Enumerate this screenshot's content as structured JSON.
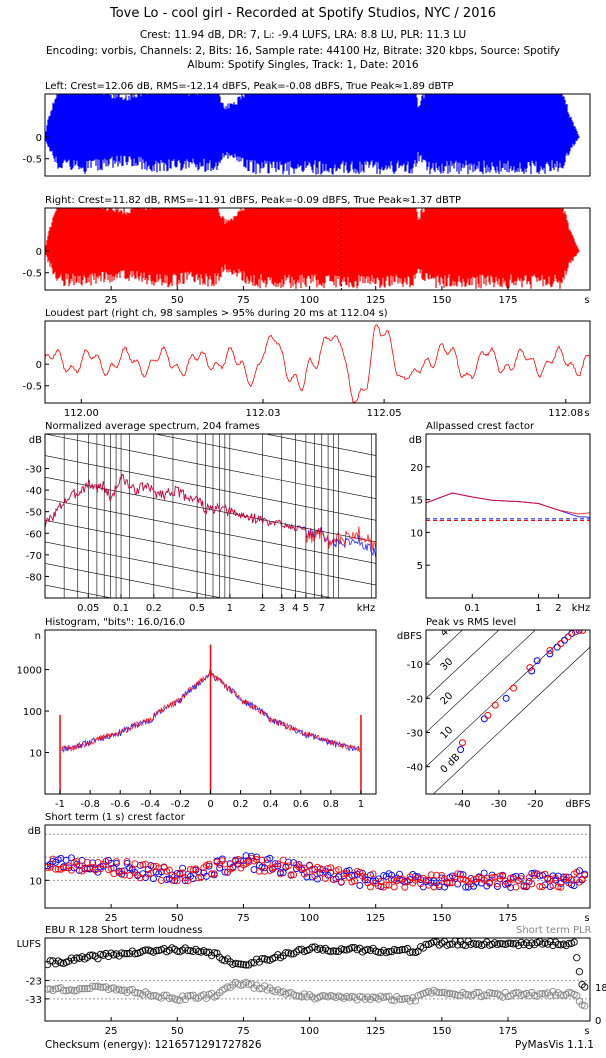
{
  "header": {
    "title": "Tove Lo - cool girl - Recorded at Spotify Studios, NYC / 2016",
    "stats": "Crest: 11.94 dB,  DR: 7,  Lᵢ: -9.4 LUFS,  LRA: 8.8 LU,  PLR: 11.3 LU",
    "encoding": "Encoding: vorbis,  Channels: 2,  Bits: 16,  Sample rate: 44100 Hz,  Bitrate: 320 kbps,  Source: Spotify",
    "album": "Album: Spotify Singles,  Track: 1,  Date: 2016"
  },
  "panels": {
    "left": {
      "title": "Left: Crest=12.06 dB, RMS=-12.14 dBFS, Peak=-0.08 dBFS, True Peak≈1.89 dBTP"
    },
    "right": {
      "title": "Right: Crest=11.82 dB, RMS=-11.91 dBFS, Peak=-0.09 dBFS, True Peak≈1.37 dBTP"
    },
    "loudest": {
      "title": "Loudest part (right ch, 98 samples > 95% during 20 ms at 112.04 s)"
    },
    "spectrum": {
      "title": "Normalized average spectrum, 204 frames"
    },
    "allpass": {
      "title": "Allpassed crest factor"
    },
    "histogram": {
      "title": "Histogram, \"bits\": 16.0/16.0"
    },
    "pvr": {
      "title": "Peak vs RMS level"
    },
    "crest": {
      "title": "Short term (1 s) crest factor"
    },
    "ebu": {
      "title": "EBU R 128 Short term loudness",
      "plr_label": "Short term PLR"
    }
  },
  "footer": {
    "checksum": "Checksum (energy): 1216571291727826",
    "version": "PyMasVis 1.1.1"
  },
  "colors": {
    "left": "#0000ff",
    "right": "#ff0000",
    "grid": "#999999"
  },
  "chart_data": [
    {
      "id": "left",
      "type": "line",
      "title": "Left: Crest=12.06 dB, RMS=-12.14 dBFS, Peak=-0.08 dBFS, True Peak≈1.89 dBTP",
      "xlim": [
        0,
        206
      ],
      "ylim": [
        -0.9,
        1.0
      ],
      "yticks": [
        0,
        -0.5
      ],
      "ytick_labels": [
        "0",
        "-0.5"
      ],
      "grid": false,
      "description_values": {
        "peak_dbfs": -0.08,
        "rms_dbfs": -12.14,
        "crest_db": 12.06
      }
    },
    {
      "id": "right",
      "type": "line",
      "title": "Right: Crest=11.82 dB, RMS=-11.91 dBFS, Peak=-0.09 dBFS, True Peak≈1.37 dBTP",
      "xlim": [
        0,
        206
      ],
      "ylim": [
        -0.9,
        1.0
      ],
      "yticks": [
        0,
        -0.5
      ],
      "ytick_labels": [
        "0",
        "-0.5"
      ],
      "xticks": [
        25,
        50,
        75,
        100,
        125,
        150,
        175
      ],
      "xlabel": "s",
      "marker_x": 112.04
    },
    {
      "id": "loudest",
      "type": "line",
      "title": "Loudest part (right ch, 98 samples > 95% during 20 ms at 112.04 s)",
      "xlim": [
        112.0,
        112.08
      ],
      "ylim": [
        -0.9,
        1.0
      ],
      "yticks": [
        0,
        -0.5
      ],
      "ytick_labels": [
        "0",
        "-0.5"
      ],
      "xticks": [
        112.0,
        112.03,
        112.05,
        112.08
      ],
      "xtick_labels": [
        "112.00",
        "112.03",
        "112.05",
        "112.08"
      ],
      "xlabel": "s"
    },
    {
      "id": "spectrum",
      "type": "line",
      "title": "Normalized average spectrum, 204 frames",
      "ylabel": "dB",
      "ylim": [
        -90,
        -14
      ],
      "yticks": [
        -30,
        -40,
        -50,
        -60,
        -70,
        -80
      ],
      "xscale": "log",
      "xlim": [
        0.02,
        22.05
      ],
      "xlabel": "kHz",
      "xticks": [
        0.05,
        0.1,
        0.2,
        0.5,
        1,
        2,
        3,
        4,
        5,
        7
      ],
      "xtick_labels": [
        "0.05",
        "0.1",
        "0.2",
        "0.5",
        "1",
        "2",
        "3",
        "4",
        "5",
        "7"
      ],
      "x": [
        0.02,
        0.03,
        0.04,
        0.05,
        0.06,
        0.07,
        0.08,
        0.1,
        0.13,
        0.17,
        0.2,
        0.25,
        0.3,
        0.4,
        0.5,
        0.6,
        0.8,
        1.0,
        1.3,
        1.7,
        2.0,
        2.5,
        3.0,
        4.0,
        5.0,
        6.0,
        7.0,
        8.0,
        10.0,
        12.0,
        15.0,
        18.0,
        22.0
      ],
      "series": [
        {
          "name": "Left",
          "values": [
            -56,
            -45,
            -41,
            -37,
            -39,
            -38,
            -44,
            -34,
            -40,
            -38,
            -41,
            -42,
            -40,
            -43,
            -44,
            -49,
            -49,
            -50,
            -52,
            -53,
            -54,
            -56,
            -55,
            -57,
            -60,
            -60,
            -59,
            -64,
            -65,
            -64,
            -63,
            -66,
            -70
          ]
        },
        {
          "name": "Right",
          "values": [
            -56,
            -45,
            -41,
            -37,
            -39,
            -38,
            -44,
            -34,
            -40,
            -38,
            -41,
            -42,
            -40,
            -43,
            -44,
            -49,
            -49,
            -50,
            -52,
            -53,
            -54,
            -56,
            -55,
            -57,
            -61,
            -61,
            -60,
            -64,
            -63,
            -62,
            -60,
            -63,
            -67
          ]
        }
      ]
    },
    {
      "id": "allpass",
      "type": "line",
      "title": "Allpassed crest factor",
      "ylabel": "dB",
      "xscale": "log",
      "xlim": [
        0.02,
        6.0
      ],
      "ylim": [
        0,
        25
      ],
      "yticks": [
        5,
        10,
        15,
        20
      ],
      "xticks": [
        0.1,
        1,
        2
      ],
      "xtick_labels": [
        "0.1",
        "1",
        "2"
      ],
      "xlabel": "kHz",
      "x": [
        0.02,
        0.05,
        0.1,
        0.2,
        0.5,
        1,
        2,
        4,
        6
      ],
      "series": [
        {
          "name": "Left",
          "values": [
            14.5,
            16.0,
            15.4,
            14.9,
            14.7,
            14.4,
            13.4,
            12.4,
            12.3
          ]
        },
        {
          "name": "Right",
          "values": [
            14.5,
            16.0,
            15.4,
            14.9,
            14.7,
            14.4,
            13.4,
            12.8,
            13.0
          ]
        }
      ],
      "reference_levels": {
        "left": 12.06,
        "right": 11.82
      }
    },
    {
      "id": "histogram",
      "type": "line",
      "title": "Histogram, \"bits\": 16.0/16.0",
      "ylabel": "n",
      "yscale": "log",
      "xlim": [
        -1.1,
        1.1
      ],
      "ylim": [
        1,
        9000
      ],
      "yticks": [
        10,
        100,
        1000
      ],
      "ytick_labels": [
        "10",
        "100",
        "1000"
      ],
      "xticks": [
        -1,
        -0.8,
        -0.6,
        -0.4,
        -0.2,
        0,
        0.2,
        0.4,
        0.6,
        0.8,
        1
      ],
      "xtick_labels": [
        "-1",
        "-0.8",
        "-0.6",
        "-0.4",
        "-0.2",
        "0",
        "0.2",
        "0.4",
        "0.6",
        "0.8",
        "1"
      ],
      "x": [
        -0.99,
        -0.9,
        -0.8,
        -0.6,
        -0.4,
        -0.2,
        -0.1,
        -0.02,
        0,
        0.02,
        0.1,
        0.2,
        0.4,
        0.6,
        0.8,
        0.9,
        0.99
      ],
      "series": [
        {
          "name": "Left",
          "values": [
            12,
            14,
            18,
            30,
            60,
            180,
            400,
            700,
            900,
            700,
            400,
            180,
            60,
            30,
            17,
            14,
            12
          ]
        },
        {
          "name": "Right",
          "values": [
            12,
            14,
            18,
            30,
            60,
            180,
            400,
            700,
            900,
            700,
            400,
            180,
            60,
            30,
            18,
            14,
            12
          ]
        }
      ],
      "spikes": {
        "x": [
          -1,
          0,
          1
        ],
        "values": [
          80,
          4000,
          80
        ]
      }
    },
    {
      "id": "pvr",
      "type": "scatter",
      "title": "Peak vs RMS level",
      "ylabel": "dBFS",
      "xlabel": "dBFS",
      "xlim": [
        -50,
        -5
      ],
      "ylim": [
        -48,
        0
      ],
      "xticks": [
        -40,
        -30,
        -20
      ],
      "yticks": [
        -10,
        -20,
        -30,
        -40
      ],
      "crest_lines": [
        0,
        10,
        20,
        30,
        40
      ],
      "crest_line_labels": [
        "0 dB",
        "10",
        "20",
        "30",
        "40"
      ],
      "series": [
        {
          "name": "Left",
          "x": [
            -40.5,
            -34,
            -28,
            -21,
            -19.5,
            -16,
            -14,
            -12,
            -10,
            -8
          ],
          "y": [
            -35,
            -26,
            -20,
            -12,
            -9,
            -7,
            -5,
            -3,
            -1,
            -0.1
          ]
        },
        {
          "name": "Right",
          "x": [
            -40,
            -33,
            -31,
            -26,
            -21.5,
            -16,
            -13,
            -11,
            -9,
            -7
          ],
          "y": [
            -33,
            -25,
            -22,
            -17,
            -11,
            -6,
            -4,
            -2,
            -0.5,
            -0.1
          ]
        }
      ]
    },
    {
      "id": "crest",
      "type": "scatter",
      "title": "Short term (1 s) crest factor",
      "ylabel": "dB",
      "xlim": [
        0,
        206
      ],
      "ylim": [
        4,
        22
      ],
      "yticks": [
        10
      ],
      "gridlines": [
        10,
        15,
        20
      ],
      "xticks": [
        25,
        50,
        75,
        100,
        125,
        150,
        175
      ],
      "xlabel": "s",
      "series": [
        {
          "name": "Left",
          "profile": {
            "x": [
              0,
              25,
              50,
              75,
              100,
              125,
              150,
              175,
              200,
              204
            ],
            "y": [
              14,
              13,
              11,
              14,
              12,
              10,
              10,
              10,
              10,
              12
            ]
          }
        },
        {
          "name": "Right",
          "profile": {
            "x": [
              0,
              25,
              50,
              75,
              100,
              125,
              150,
              175,
              200,
              204
            ],
            "y": [
              14,
              13,
              11,
              14,
              12,
              10,
              10,
              10,
              10,
              12
            ]
          }
        }
      ]
    },
    {
      "id": "ebu",
      "type": "scatter",
      "title": "EBU R 128 Short term loudness",
      "ylabel": "LUFS",
      "xlim": [
        0,
        206
      ],
      "ylim": [
        -45,
        0
      ],
      "yticks": [
        -23,
        -33
      ],
      "ytick_labels": [
        "-23",
        "-33"
      ],
      "ytick_top_label": "LUFS",
      "right_axis": {
        "label": "Short term PLR",
        "ticks": [
          18,
          0
        ]
      },
      "xticks": [
        25,
        50,
        75,
        100,
        125,
        150,
        175
      ],
      "xlabel": "s",
      "series": [
        {
          "name": "Short term loudness",
          "profile": {
            "x": [
              0,
              25,
              50,
              65,
              72,
              100,
              140,
              145,
              170,
              200,
              203
            ],
            "y": [
              -14,
              -9,
              -6,
              -9,
              -15,
              -6,
              -7,
              -3,
              -3,
              -3,
              -26
            ]
          }
        },
        {
          "name": "Short term PLR",
          "profile": {
            "x": [
              0,
              25,
              50,
              65,
              72,
              100,
              140,
              145,
              170,
              200,
              203
            ],
            "y": [
              -28,
              -27,
              -33,
              -31,
              -24,
              -32,
              -33,
              -29,
              -31,
              -30,
              -36
            ]
          }
        }
      ]
    }
  ]
}
